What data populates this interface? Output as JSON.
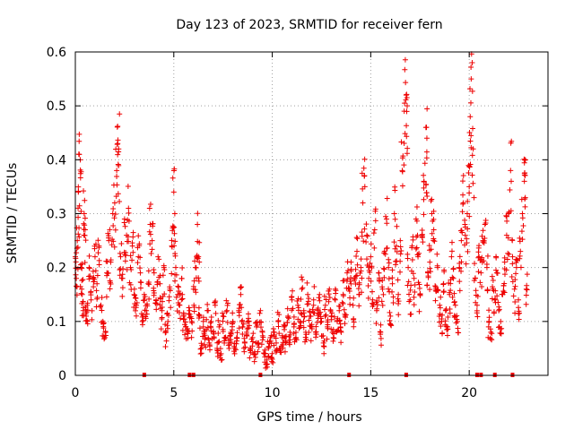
{
  "chart_data": {
    "type": "scatter",
    "title": "Day 123 of 2023, SRMTID for receiver fern",
    "xlabel": "GPS time / hours",
    "ylabel": "SRMTID / TECUs",
    "xlim": [
      0,
      24
    ],
    "ylim": [
      0,
      0.6
    ],
    "xticks": [
      0,
      5,
      10,
      15,
      20
    ],
    "yticks": [
      0,
      0.1,
      0.2,
      0.3,
      0.4,
      0.5,
      0.6
    ],
    "grid": true,
    "marker": "+",
    "color": "#ee0000",
    "series": [
      {
        "name": "SRMTID",
        "points": [
          [
            0.0,
            0.22
          ],
          [
            0.05,
            0.18
          ],
          [
            0.1,
            0.25
          ],
          [
            0.15,
            0.34
          ],
          [
            0.2,
            0.41
          ],
          [
            0.25,
            0.4
          ],
          [
            0.3,
            0.2
          ],
          [
            0.35,
            0.15
          ],
          [
            0.4,
            0.12
          ],
          [
            0.45,
            0.3
          ],
          [
            0.5,
            0.27
          ],
          [
            0.55,
            0.11
          ],
          [
            0.6,
            0.13
          ],
          [
            0.7,
            0.2
          ],
          [
            0.8,
            0.14
          ],
          [
            0.9,
            0.18
          ],
          [
            1.0,
            0.22
          ],
          [
            1.1,
            0.17
          ],
          [
            1.2,
            0.24
          ],
          [
            1.3,
            0.13
          ],
          [
            1.4,
            0.1
          ],
          [
            1.5,
            0.07
          ],
          [
            1.6,
            0.19
          ],
          [
            1.7,
            0.25
          ],
          [
            1.8,
            0.21
          ],
          [
            1.9,
            0.3
          ],
          [
            2.0,
            0.32
          ],
          [
            2.1,
            0.38
          ],
          [
            2.15,
            0.43
          ],
          [
            2.2,
            0.42
          ],
          [
            2.3,
            0.22
          ],
          [
            2.4,
            0.18
          ],
          [
            2.5,
            0.29
          ],
          [
            2.6,
            0.26
          ],
          [
            2.7,
            0.31
          ],
          [
            2.8,
            0.2
          ],
          [
            2.9,
            0.24
          ],
          [
            3.0,
            0.16
          ],
          [
            3.1,
            0.13
          ],
          [
            3.2,
            0.22
          ],
          [
            3.3,
            0.19
          ],
          [
            3.4,
            0.1
          ],
          [
            3.5,
            0.15
          ],
          [
            3.6,
            0.12
          ],
          [
            3.7,
            0.17
          ],
          [
            3.8,
            0.28
          ],
          [
            3.9,
            0.25
          ],
          [
            4.0,
            0.19
          ],
          [
            4.1,
            0.14
          ],
          [
            4.2,
            0.22
          ],
          [
            4.3,
            0.17
          ],
          [
            4.4,
            0.12
          ],
          [
            4.5,
            0.2
          ],
          [
            4.6,
            0.08
          ],
          [
            4.7,
            0.1
          ],
          [
            4.8,
            0.16
          ],
          [
            4.9,
            0.24
          ],
          [
            5.0,
            0.34
          ],
          [
            5.05,
            0.3
          ],
          [
            5.1,
            0.2
          ],
          [
            5.2,
            0.15
          ],
          [
            5.3,
            0.13
          ],
          [
            5.4,
            0.18
          ],
          [
            5.5,
            0.11
          ],
          [
            5.6,
            0.09
          ],
          [
            5.7,
            0.08
          ],
          [
            5.8,
            0.12
          ],
          [
            5.9,
            0.1
          ],
          [
            6.0,
            0.16
          ],
          [
            6.1,
            0.2
          ],
          [
            6.2,
            0.28
          ],
          [
            6.25,
            0.22
          ],
          [
            6.3,
            0.11
          ],
          [
            6.4,
            0.05
          ],
          [
            6.5,
            0.09
          ],
          [
            6.6,
            0.07
          ],
          [
            6.7,
            0.12
          ],
          [
            6.8,
            0.06
          ],
          [
            6.9,
            0.1
          ],
          [
            7.0,
            0.08
          ],
          [
            7.1,
            0.13
          ],
          [
            7.2,
            0.05
          ],
          [
            7.3,
            0.09
          ],
          [
            7.4,
            0.04
          ],
          [
            7.5,
            0.11
          ],
          [
            7.6,
            0.07
          ],
          [
            7.7,
            0.12
          ],
          [
            7.8,
            0.06
          ],
          [
            7.9,
            0.08
          ],
          [
            8.0,
            0.1
          ],
          [
            8.1,
            0.05
          ],
          [
            8.2,
            0.07
          ],
          [
            8.3,
            0.12
          ],
          [
            8.4,
            0.15
          ],
          [
            8.5,
            0.09
          ],
          [
            8.6,
            0.06
          ],
          [
            8.7,
            0.08
          ],
          [
            8.8,
            0.1
          ],
          [
            8.9,
            0.05
          ],
          [
            9.0,
            0.07
          ],
          [
            9.1,
            0.04
          ],
          [
            9.2,
            0.09
          ],
          [
            9.3,
            0.06
          ],
          [
            9.4,
            0.12
          ],
          [
            9.5,
            0.08
          ],
          [
            9.6,
            0.04
          ],
          [
            9.7,
            0.02
          ],
          [
            9.8,
            0.05
          ],
          [
            9.9,
            0.07
          ],
          [
            10.0,
            0.03
          ],
          [
            10.1,
            0.08
          ],
          [
            10.2,
            0.06
          ],
          [
            10.3,
            0.1
          ],
          [
            10.4,
            0.05
          ],
          [
            10.5,
            0.07
          ],
          [
            10.6,
            0.09
          ],
          [
            10.7,
            0.06
          ],
          [
            10.8,
            0.11
          ],
          [
            10.9,
            0.08
          ],
          [
            11.0,
            0.14
          ],
          [
            11.1,
            0.09
          ],
          [
            11.2,
            0.07
          ],
          [
            11.3,
            0.13
          ],
          [
            11.4,
            0.1
          ],
          [
            11.5,
            0.16
          ],
          [
            11.6,
            0.12
          ],
          [
            11.7,
            0.08
          ],
          [
            11.8,
            0.15
          ],
          [
            11.9,
            0.11
          ],
          [
            12.0,
            0.09
          ],
          [
            12.1,
            0.14
          ],
          [
            12.2,
            0.08
          ],
          [
            12.3,
            0.12
          ],
          [
            12.4,
            0.15
          ],
          [
            12.5,
            0.1
          ],
          [
            12.6,
            0.06
          ],
          [
            12.7,
            0.13
          ],
          [
            12.8,
            0.09
          ],
          [
            12.9,
            0.16
          ],
          [
            13.0,
            0.11
          ],
          [
            13.1,
            0.07
          ],
          [
            13.2,
            0.14
          ],
          [
            13.3,
            0.1
          ],
          [
            13.4,
            0.12
          ],
          [
            13.5,
            0.08
          ],
          [
            13.6,
            0.15
          ],
          [
            13.7,
            0.11
          ],
          [
            13.8,
            0.19
          ],
          [
            13.9,
            0.16
          ],
          [
            14.0,
            0.21
          ],
          [
            14.1,
            0.13
          ],
          [
            14.2,
            0.18
          ],
          [
            14.3,
            0.23
          ],
          [
            14.4,
            0.15
          ],
          [
            14.5,
            0.2
          ],
          [
            14.6,
            0.32
          ],
          [
            14.7,
            0.35
          ],
          [
            14.8,
            0.26
          ],
          [
            14.9,
            0.18
          ],
          [
            15.0,
            0.22
          ],
          [
            15.1,
            0.14
          ],
          [
            15.2,
            0.27
          ],
          [
            15.3,
            0.12
          ],
          [
            15.4,
            0.19
          ],
          [
            15.5,
            0.08
          ],
          [
            15.6,
            0.16
          ],
          [
            15.7,
            0.23
          ],
          [
            15.8,
            0.29
          ],
          [
            15.9,
            0.2
          ],
          [
            16.0,
            0.11
          ],
          [
            16.1,
            0.17
          ],
          [
            16.2,
            0.3
          ],
          [
            16.3,
            0.24
          ],
          [
            16.4,
            0.15
          ],
          [
            16.5,
            0.25
          ],
          [
            16.6,
            0.38
          ],
          [
            16.7,
            0.49
          ],
          [
            16.8,
            0.52
          ],
          [
            16.85,
            0.5
          ],
          [
            16.9,
            0.2
          ],
          [
            17.0,
            0.14
          ],
          [
            17.1,
            0.24
          ],
          [
            17.2,
            0.18
          ],
          [
            17.3,
            0.29
          ],
          [
            17.4,
            0.22
          ],
          [
            17.5,
            0.15
          ],
          [
            17.6,
            0.26
          ],
          [
            17.7,
            0.36
          ],
          [
            17.8,
            0.46
          ],
          [
            17.85,
            0.44
          ],
          [
            17.9,
            0.19
          ],
          [
            18.0,
            0.21
          ],
          [
            18.1,
            0.3
          ],
          [
            18.2,
            0.27
          ],
          [
            18.3,
            0.16
          ],
          [
            18.4,
            0.2
          ],
          [
            18.5,
            0.13
          ],
          [
            18.6,
            0.1
          ],
          [
            18.7,
            0.17
          ],
          [
            18.8,
            0.12
          ],
          [
            18.9,
            0.09
          ],
          [
            19.0,
            0.15
          ],
          [
            19.1,
            0.22
          ],
          [
            19.2,
            0.18
          ],
          [
            19.3,
            0.13
          ],
          [
            19.4,
            0.1
          ],
          [
            19.5,
            0.2
          ],
          [
            19.6,
            0.25
          ],
          [
            19.7,
            0.32
          ],
          [
            19.8,
            0.26
          ],
          [
            19.9,
            0.3
          ],
          [
            20.0,
            0.35
          ],
          [
            20.05,
            0.48
          ],
          [
            20.1,
            0.55
          ],
          [
            20.15,
            0.58
          ],
          [
            20.2,
            0.42
          ],
          [
            20.3,
            0.18
          ],
          [
            20.4,
            0.13
          ],
          [
            20.5,
            0.22
          ],
          [
            20.6,
            0.19
          ],
          [
            20.7,
            0.25
          ],
          [
            20.8,
            0.28
          ],
          [
            20.9,
            0.2
          ],
          [
            21.0,
            0.1
          ],
          [
            21.1,
            0.08
          ],
          [
            21.2,
            0.16
          ],
          [
            21.3,
            0.14
          ],
          [
            21.4,
            0.19
          ],
          [
            21.5,
            0.12
          ],
          [
            21.6,
            0.1
          ],
          [
            21.7,
            0.15
          ],
          [
            21.8,
            0.21
          ],
          [
            21.9,
            0.26
          ],
          [
            22.0,
            0.3
          ],
          [
            22.1,
            0.38
          ],
          [
            22.2,
            0.22
          ],
          [
            22.3,
            0.16
          ],
          [
            22.4,
            0.2
          ],
          [
            22.5,
            0.14
          ],
          [
            22.6,
            0.23
          ],
          [
            22.7,
            0.3
          ],
          [
            22.8,
            0.36
          ],
          [
            22.85,
            0.4
          ],
          [
            22.9,
            0.16
          ]
        ]
      }
    ],
    "gap_markers_x": [
      3.5,
      5.8,
      6.0,
      9.4,
      13.9,
      16.8,
      20.4,
      20.6,
      21.3,
      22.2
    ]
  }
}
